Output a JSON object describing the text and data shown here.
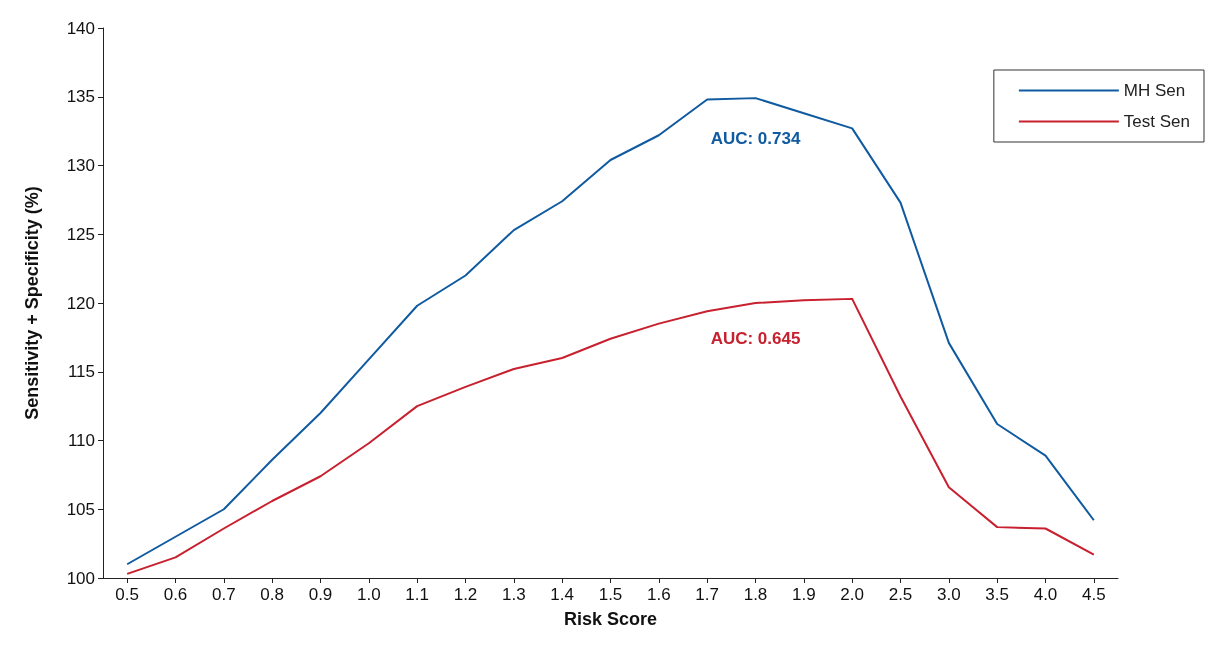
{
  "chart_data": {
    "type": "line",
    "xlabel": "Risk Score",
    "ylabel": "Sensitivity + Specificity (%)",
    "categories": [
      "0.5",
      "0.6",
      "0.7",
      "0.8",
      "0.9",
      "1.0",
      "1.1",
      "1.2",
      "1.3",
      "1.4",
      "1.5",
      "1.6",
      "1.7",
      "1.8",
      "1.9",
      "2.0",
      "2.5",
      "3.0",
      "3.5",
      "4.0",
      "4.5"
    ],
    "series": [
      {
        "name": "MH Sen",
        "color": "#0f5aa0",
        "values": [
          101.0,
          103.0,
          105.0,
          108.6,
          112.0,
          115.9,
          119.8,
          122.0,
          125.3,
          127.4,
          130.4,
          132.2,
          134.8,
          134.9,
          133.8,
          132.7,
          127.3,
          117.1,
          111.2,
          108.9,
          104.2
        ]
      },
      {
        "name": "Test Sen",
        "color": "#c8202e",
        "values": [
          100.3,
          101.5,
          103.6,
          105.6,
          107.4,
          109.8,
          112.5,
          113.9,
          115.2,
          116.0,
          117.4,
          118.5,
          119.4,
          120.0,
          120.2,
          120.3,
          113.2,
          106.6,
          103.7,
          103.6,
          101.7
        ]
      }
    ],
    "ylim": [
      100,
      140
    ],
    "yticks": [
      100,
      105,
      110,
      115,
      120,
      125,
      130,
      135,
      140
    ],
    "annotations": [
      "AUC: 0.734",
      "AUC: 0.645"
    ],
    "grid": false,
    "legend": "top right",
    "marker": "none",
    "line_style": "solid"
  }
}
